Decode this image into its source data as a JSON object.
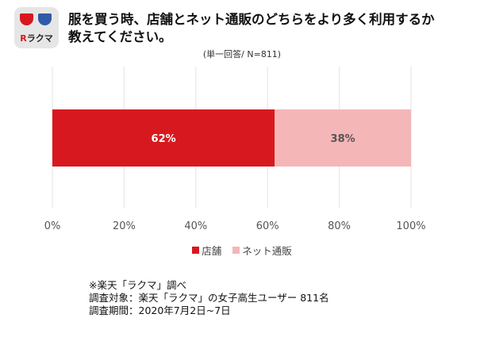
{
  "logo": {
    "mark": "R",
    "text": "ラクマ",
    "icon": "rakuma-logo-icon"
  },
  "header": {
    "title_line1": "服を買う時、店舗とネット通販のどちらをより多く利用するか",
    "title_line2": "教えてください。"
  },
  "note": "(単一回答/ N=811)",
  "chart_data": {
    "type": "bar",
    "orientation": "horizontal",
    "stacked": true,
    "percent_scale": true,
    "series": [
      {
        "name": "店舗",
        "values": [
          62
        ],
        "label": "62%",
        "color": "#d7191f",
        "label_color": "#ffffff"
      },
      {
        "name": "ネット通販",
        "values": [
          38
        ],
        "label": "38%",
        "color": "#f5b6b8",
        "label_color": "#555555"
      }
    ],
    "xlim": [
      0,
      100
    ],
    "xticks": [
      "0%",
      "20%",
      "40%",
      "60%",
      "80%",
      "100%"
    ],
    "grid": true,
    "legend_position": "bottom"
  },
  "footer": {
    "line1": "※楽天「ラクマ」調べ",
    "line2": "調査対象：楽天「ラクマ」の女子高生ユーザー 811名",
    "line3": "調査期間：2020年7月2日~7日"
  }
}
